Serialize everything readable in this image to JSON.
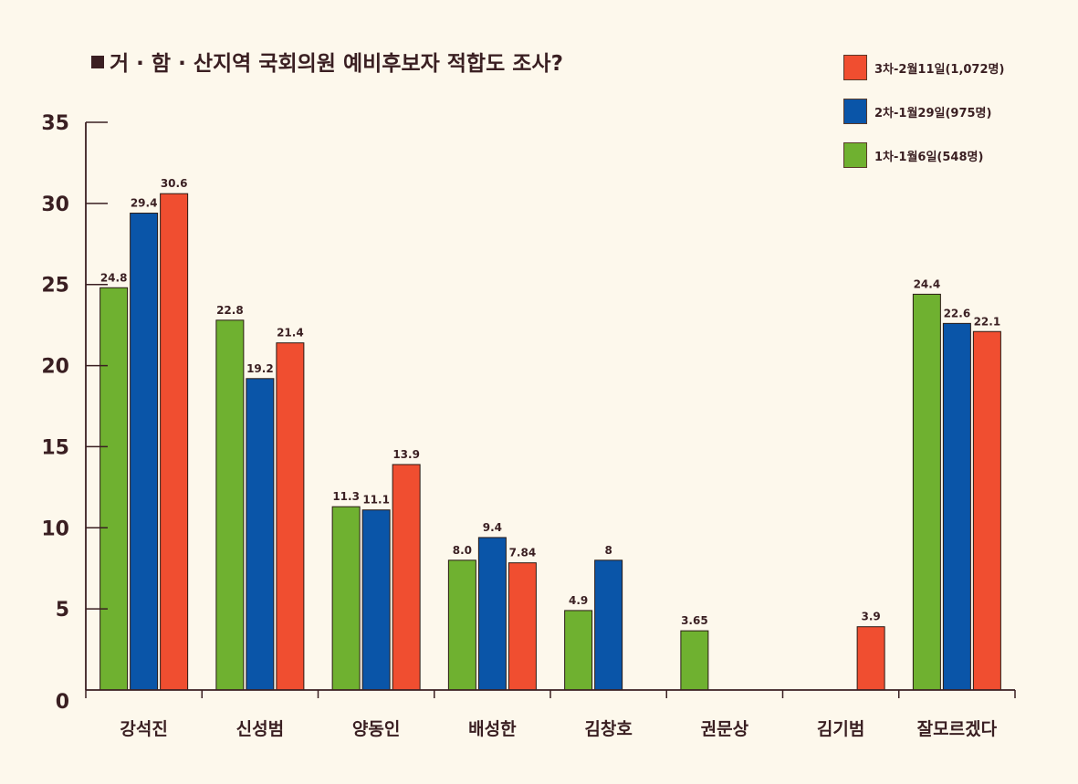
{
  "title": "거 · 함 · 산지역 국회의원 예비후보자 적합도 조사?",
  "colors": {
    "background": "#fdf8ec",
    "axis": "#3a1f22",
    "series1": "#6fb130",
    "series2": "#0a55a8",
    "series3": "#f04e30"
  },
  "chart_data": {
    "type": "bar",
    "title": "거 · 함 · 산지역 국회의원 예비후보자 적합도 조사?",
    "xlabel": "",
    "ylabel": "",
    "ylim": [
      0,
      35
    ],
    "yticks": [
      0,
      5,
      10,
      15,
      20,
      25,
      30,
      35
    ],
    "grid": false,
    "legend_position": "top-right",
    "categories": [
      "강석진",
      "신성범",
      "양동인",
      "배성한",
      "김창호",
      "권문상",
      "김기범",
      "잘모르겠다"
    ],
    "series": [
      {
        "name": "1차-1월6일(548명)",
        "color": "#6fb130",
        "values": [
          24.8,
          22.8,
          11.3,
          8.0,
          4.9,
          3.65,
          null,
          24.4
        ],
        "labels": [
          "24.8",
          "22.8",
          "11.3",
          "8.0",
          "4.9",
          "3.65",
          "",
          "24.4"
        ]
      },
      {
        "name": "2차-1월29일(975명)",
        "color": "#0a55a8",
        "values": [
          29.4,
          19.2,
          11.1,
          9.4,
          8,
          null,
          null,
          22.6
        ],
        "labels": [
          "29.4",
          "19.2",
          "11.1",
          "9.4",
          "8",
          "",
          "",
          "22.6"
        ]
      },
      {
        "name": "3차-2월11일(1,072명)",
        "color": "#f04e30",
        "values": [
          30.6,
          21.4,
          13.9,
          7.84,
          null,
          null,
          3.9,
          22.1
        ],
        "labels": [
          "30.6",
          "21.4",
          "13.9",
          "7.84",
          "",
          "",
          "3.9",
          "22.1"
        ]
      }
    ]
  }
}
